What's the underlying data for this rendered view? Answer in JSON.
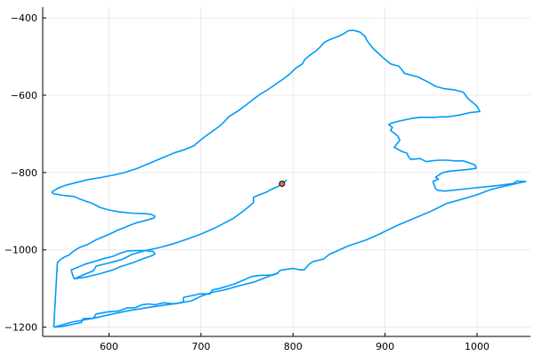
{
  "chart_data": {
    "type": "line",
    "title": "",
    "xlabel": "",
    "ylabel": "",
    "xlim": [
      528,
      1058
    ],
    "ylim": [
      -1224,
      -372
    ],
    "xticks": [
      600,
      700,
      800,
      900,
      1000
    ],
    "yticks": [
      -400,
      -600,
      -800,
      -1000,
      -1200
    ],
    "xtick_labels": [
      "600",
      "700",
      "800",
      "900",
      "1000"
    ],
    "ytick_labels": [
      "−400",
      "−600",
      "−800",
      "−1000",
      "−1200"
    ],
    "grid": true,
    "legend": "none",
    "series": [
      {
        "color": "#009AF9",
        "points": [
          [
            540,
            -1200
          ],
          [
            550,
            -1198
          ],
          [
            562,
            -1192
          ],
          [
            570,
            -1188
          ],
          [
            572,
            -1178
          ],
          [
            583,
            -1177
          ],
          [
            586,
            -1166
          ],
          [
            598,
            -1161
          ],
          [
            611,
            -1158
          ],
          [
            620,
            -1150
          ],
          [
            628,
            -1150
          ],
          [
            636,
            -1142
          ],
          [
            643,
            -1140
          ],
          [
            650,
            -1142
          ],
          [
            660,
            -1137
          ],
          [
            671,
            -1140
          ],
          [
            681,
            -1135
          ],
          [
            681,
            -1123
          ],
          [
            695,
            -1116
          ],
          [
            698,
            -1114
          ],
          [
            710,
            -1114
          ],
          [
            712,
            -1104
          ],
          [
            720,
            -1100
          ],
          [
            737,
            -1088
          ],
          [
            755,
            -1069
          ],
          [
            764,
            -1066
          ],
          [
            778,
            -1065
          ],
          [
            783,
            -1061
          ],
          [
            786,
            -1053
          ],
          [
            800,
            -1048
          ],
          [
            808,
            -1052
          ],
          [
            812,
            -1052
          ],
          [
            818,
            -1036
          ],
          [
            822,
            -1030
          ],
          [
            833,
            -1024
          ],
          [
            840,
            -1011
          ],
          [
            860,
            -990
          ],
          [
            880,
            -974
          ],
          [
            895,
            -958
          ],
          [
            900,
            -952
          ],
          [
            915,
            -935
          ],
          [
            930,
            -920
          ],
          [
            950,
            -900
          ],
          [
            967,
            -880
          ],
          [
            982,
            -870
          ],
          [
            998,
            -859
          ],
          [
            1014,
            -845
          ],
          [
            1025,
            -838
          ],
          [
            1040,
            -830
          ],
          [
            1053,
            -823
          ],
          [
            1043,
            -822
          ],
          [
            1040,
            -828
          ],
          [
            1025,
            -833
          ],
          [
            1004,
            -838
          ],
          [
            985,
            -843
          ],
          [
            965,
            -848
          ],
          [
            957,
            -846
          ],
          [
            955,
            -842
          ],
          [
            952,
            -823
          ],
          [
            958,
            -817
          ],
          [
            955,
            -812
          ],
          [
            960,
            -804
          ],
          [
            963,
            -800
          ],
          [
            968,
            -797
          ],
          [
            977,
            -795
          ],
          [
            990,
            -792
          ],
          [
            999,
            -789
          ],
          [
            998,
            -781
          ],
          [
            995,
            -778
          ],
          [
            985,
            -770
          ],
          [
            976,
            -770
          ],
          [
            968,
            -768
          ],
          [
            958,
            -768
          ],
          [
            950,
            -770
          ],
          [
            945,
            -772
          ],
          [
            938,
            -764
          ],
          [
            928,
            -766
          ],
          [
            925,
            -757
          ],
          [
            924,
            -750
          ],
          [
            918,
            -745
          ],
          [
            910,
            -735
          ],
          [
            913,
            -725
          ],
          [
            916,
            -717
          ],
          [
            914,
            -706
          ],
          [
            910,
            -698
          ],
          [
            906,
            -691
          ],
          [
            908,
            -683
          ],
          [
            904,
            -676
          ],
          [
            907,
            -672
          ],
          [
            915,
            -667
          ],
          [
            929,
            -660
          ],
          [
            938,
            -657
          ],
          [
            945,
            -657
          ],
          [
            950,
            -657
          ],
          [
            955,
            -657
          ],
          [
            960,
            -656
          ],
          [
            968,
            -656
          ],
          [
            981,
            -651
          ],
          [
            992,
            -645
          ],
          [
            1003,
            -642
          ],
          [
            1000,
            -628
          ],
          [
            990,
            -608
          ],
          [
            985,
            -592
          ],
          [
            975,
            -586
          ],
          [
            964,
            -583
          ],
          [
            955,
            -577
          ],
          [
            946,
            -565
          ],
          [
            936,
            -553
          ],
          [
            921,
            -543
          ],
          [
            918,
            -533
          ],
          [
            915,
            -525
          ],
          [
            906,
            -519
          ],
          [
            899,
            -505
          ],
          [
            894,
            -494
          ],
          [
            887,
            -479
          ],
          [
            883,
            -467
          ],
          [
            880,
            -457
          ],
          [
            878,
            -447
          ],
          [
            873,
            -437
          ],
          [
            866,
            -432
          ],
          [
            860,
            -433
          ],
          [
            855,
            -441
          ],
          [
            848,
            -449
          ],
          [
            840,
            -456
          ],
          [
            834,
            -463
          ],
          [
            830,
            -474
          ],
          [
            825,
            -485
          ],
          [
            818,
            -497
          ],
          [
            813,
            -507
          ],
          [
            810,
            -519
          ],
          [
            803,
            -530
          ],
          [
            797,
            -544
          ],
          [
            790,
            -557
          ],
          [
            782,
            -570
          ],
          [
            773,
            -585
          ],
          [
            764,
            -598
          ],
          [
            756,
            -612
          ],
          [
            748,
            -627
          ],
          [
            740,
            -641
          ],
          [
            730,
            -656
          ],
          [
            725,
            -669
          ],
          [
            719,
            -682
          ],
          [
            712,
            -694
          ],
          [
            705,
            -706
          ],
          [
            700,
            -715
          ],
          [
            692,
            -731
          ],
          [
            682,
            -741
          ],
          [
            671,
            -749
          ],
          [
            658,
            -762
          ],
          [
            645,
            -775
          ],
          [
            630,
            -790
          ],
          [
            617,
            -800
          ],
          [
            604,
            -807
          ],
          [
            591,
            -813
          ],
          [
            578,
            -818
          ],
          [
            566,
            -825
          ],
          [
            554,
            -832
          ],
          [
            545,
            -840
          ],
          [
            540,
            -847
          ],
          [
            538,
            -851
          ],
          [
            540,
            -855
          ],
          [
            545,
            -857
          ],
          [
            550,
            -859
          ],
          [
            555,
            -860
          ],
          [
            562,
            -862
          ],
          [
            570,
            -870
          ],
          [
            582,
            -880
          ],
          [
            590,
            -890
          ],
          [
            600,
            -897
          ],
          [
            612,
            -902
          ],
          [
            625,
            -905
          ],
          [
            638,
            -906
          ],
          [
            646,
            -908
          ],
          [
            650,
            -913
          ],
          [
            649,
            -918
          ],
          [
            641,
            -923
          ],
          [
            630,
            -930
          ],
          [
            622,
            -937
          ],
          [
            615,
            -944
          ],
          [
            608,
            -951
          ],
          [
            600,
            -960
          ],
          [
            592,
            -968
          ],
          [
            585,
            -975
          ],
          [
            580,
            -982
          ],
          [
            576,
            -987
          ],
          [
            572,
            -990
          ],
          [
            567,
            -995
          ],
          [
            562,
            -1003
          ],
          [
            559,
            -1008
          ],
          [
            557,
            -1013
          ],
          [
            553,
            -1017
          ],
          [
            548,
            -1024
          ],
          [
            544,
            -1033
          ],
          [
            540,
            -1200
          ]
        ]
      },
      {
        "color": "#009AF9",
        "points": [
          [
            540,
            -1200
          ],
          [
            560,
            -1187
          ],
          [
            585,
            -1176
          ],
          [
            600,
            -1168
          ],
          [
            620,
            -1158
          ],
          [
            640,
            -1150
          ],
          [
            660,
            -1143
          ],
          [
            675,
            -1138
          ],
          [
            690,
            -1132
          ],
          [
            700,
            -1120
          ],
          [
            712,
            -1110
          ],
          [
            725,
            -1104
          ],
          [
            740,
            -1094
          ],
          [
            758,
            -1083
          ],
          [
            772,
            -1070
          ],
          [
            783,
            -1060
          ]
        ]
      },
      {
        "color": "#009AF9",
        "points": [
          [
            562,
            -1075
          ],
          [
            575,
            -1062
          ],
          [
            583,
            -1054
          ],
          [
            586,
            -1042
          ],
          [
            600,
            -1034
          ],
          [
            614,
            -1025
          ],
          [
            625,
            -1012
          ],
          [
            639,
            -1002
          ],
          [
            655,
            -994
          ],
          [
            672,
            -983
          ],
          [
            685,
            -972
          ],
          [
            698,
            -961
          ],
          [
            708,
            -951
          ],
          [
            718,
            -940
          ],
          [
            726,
            -930
          ],
          [
            735,
            -919
          ],
          [
            747,
            -898
          ],
          [
            752,
            -888
          ],
          [
            757,
            -878
          ],
          [
            757,
            -864
          ],
          [
            764,
            -857
          ],
          [
            771,
            -851
          ],
          [
            775,
            -845
          ],
          [
            781,
            -839
          ],
          [
            786,
            -833
          ],
          [
            790,
            -826
          ],
          [
            793,
            -819
          ]
        ]
      },
      {
        "color": "#009AF9",
        "points": [
          [
            562,
            -1075
          ],
          [
            576,
            -1070
          ],
          [
            590,
            -1062
          ],
          [
            604,
            -1052
          ],
          [
            612,
            -1044
          ],
          [
            625,
            -1034
          ],
          [
            637,
            -1023
          ],
          [
            648,
            -1014
          ],
          [
            650,
            -1010
          ],
          [
            648,
            -1004
          ],
          [
            640,
            -1002
          ],
          [
            630,
            -1002
          ],
          [
            620,
            -1003
          ],
          [
            612,
            -1009
          ],
          [
            604,
            -1017
          ],
          [
            594,
            -1023
          ],
          [
            584,
            -1030
          ],
          [
            574,
            -1037
          ],
          [
            566,
            -1045
          ],
          [
            559,
            -1052
          ],
          [
            560,
            -1061
          ],
          [
            562,
            -1075
          ]
        ]
      }
    ],
    "scatter_point": {
      "x": 788,
      "y": -829,
      "color": "#E26F46"
    }
  }
}
